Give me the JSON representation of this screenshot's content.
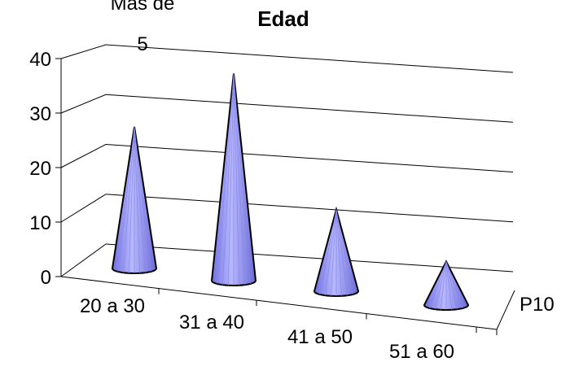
{
  "chart_data": {
    "type": "bar",
    "shape": "3d-cone",
    "title": "Edad",
    "legend_label_line1": "Mas de",
    "legend_label_line2": "5",
    "series_label": "P10",
    "categories": [
      "20 a 30",
      "31 a 40",
      "41 a 50",
      "51 a 60"
    ],
    "values": [
      26,
      38,
      15,
      8
    ],
    "ylim": [
      0,
      40
    ],
    "yticks": [
      "0",
      "10",
      "20",
      "30",
      "40"
    ],
    "grid": true,
    "cone_color": "#9999ff",
    "cone_edge_color": "#000000"
  }
}
